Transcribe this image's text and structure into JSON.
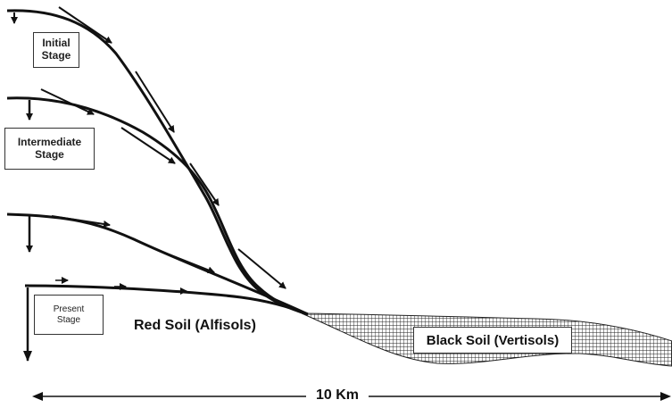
{
  "stages": {
    "initial": [
      "Initial",
      "Stage"
    ],
    "intermediate": [
      "Intermediate",
      "Stage"
    ],
    "present": [
      "Present",
      "Stage"
    ]
  },
  "soils": {
    "red": "Red Soil (Alfisols)",
    "black": "Black Soil (Vertisols)"
  },
  "distance": "10 Km",
  "colors": {
    "line": "#111111",
    "hatch": "#222222",
    "background": "#ffffff"
  }
}
